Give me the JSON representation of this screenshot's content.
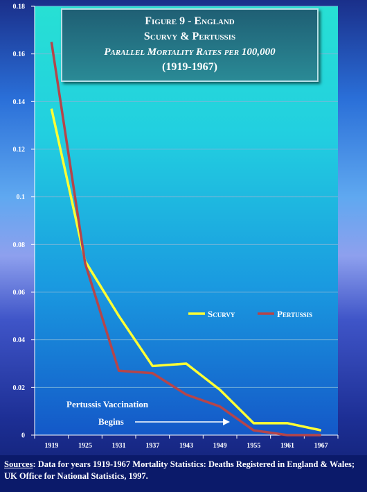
{
  "title": {
    "line1": "Figure 9 - England",
    "line2": "Scurvy & Pertussis",
    "line3": "Parallel Mortality Rates per 100,000",
    "line4": "(1919-1967)"
  },
  "annotation": {
    "line1": "Pertussis Vaccination",
    "line2": "Begins"
  },
  "footer": {
    "source_label": "Sources",
    "source_text": ": Data for years 1919-1967 Mortality Statistics: Deaths Registered in England & Wales;  UK Office for National Statistics, 1997."
  },
  "colors": {
    "scurvy": "#ffff33",
    "pertussis": "#b5454a",
    "plot_top": "#1fd6d8",
    "plot_bottom": "#1660c8"
  },
  "chart_data": {
    "type": "line",
    "categories": [
      "1919",
      "1925",
      "1931",
      "1937",
      "1943",
      "1949",
      "1955",
      "1961",
      "1967"
    ],
    "series": [
      {
        "name": "Scurvy",
        "values": [
          0.137,
          0.073,
          0.05,
          0.029,
          0.03,
          0.019,
          0.005,
          0.005,
          0.002
        ]
      },
      {
        "name": "Pertussis",
        "values": [
          0.165,
          0.072,
          0.027,
          0.026,
          0.017,
          0.012,
          0.002,
          0.0,
          0.0
        ]
      }
    ],
    "y_ticks": [
      "0",
      "0.02",
      "0.04",
      "0.06",
      "0.08",
      "0.1",
      "0.12",
      "0.14",
      "0.16",
      "0.18"
    ],
    "ylim": [
      0,
      0.18
    ],
    "grid": true,
    "legend_position": "right"
  }
}
